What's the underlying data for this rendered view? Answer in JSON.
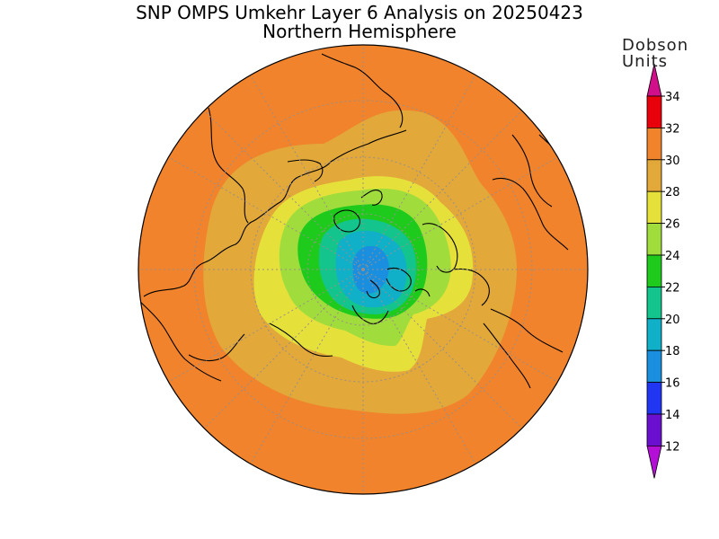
{
  "header": {
    "title": "SNP OMPS Umkehr Layer 6 Analysis on 20250423",
    "subtitle": "Northern Hemisphere"
  },
  "colorbar": {
    "title_line1": "Dobson",
    "title_line2": "Units",
    "ticks": [
      "34",
      "32",
      "30",
      "28",
      "26",
      "24",
      "22",
      "20",
      "18",
      "16",
      "14",
      "12"
    ],
    "bands": [
      {
        "range": "32-34",
        "color": "#e8000b"
      },
      {
        "range": "30-32",
        "color": "#f0832b"
      },
      {
        "range": "28-30",
        "color": "#e2a83a"
      },
      {
        "range": "26-28",
        "color": "#e6e13a"
      },
      {
        "range": "24-26",
        "color": "#a0dc3c"
      },
      {
        "range": "22-24",
        "color": "#1ecb1c"
      },
      {
        "range": "20-22",
        "color": "#13c48d"
      },
      {
        "range": "18-20",
        "color": "#10b0c8"
      },
      {
        "range": "16-18",
        "color": "#1a8fe0"
      },
      {
        "range": "14-16",
        "color": "#2136f2"
      },
      {
        "range": "12-14",
        "color": "#6b0fd1"
      }
    ],
    "top_arrow_color": "#d10f8a",
    "bottom_arrow_color": "#b40fd6"
  },
  "map": {
    "projection": "north-polar-stereographic",
    "field": "layer 6 ozone, Dobson Units"
  }
}
